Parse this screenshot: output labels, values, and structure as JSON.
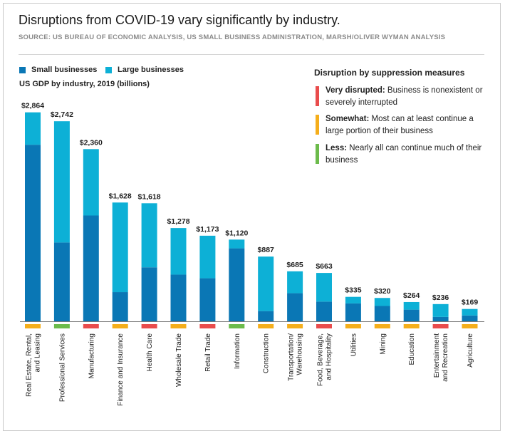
{
  "header": {
    "title": "Disruptions from COVID-19 vary significantly by industry.",
    "source": "SOURCE: US BUREAU OF ECONOMIC ANALYSIS, US SMALL BUSINESS ADMINISTRATION, MARSH/OLIVER WYMAN ANALYSIS"
  },
  "colors": {
    "small": "#0a77b5",
    "large": "#0db0d6",
    "very": "#e94c4c",
    "somewhat": "#f5ae1b",
    "less": "#6cbb4b"
  },
  "legend": {
    "small_label": "Small businesses",
    "large_label": "Large businesses"
  },
  "disruption_key": {
    "title": "Disruption by suppression measures",
    "items": [
      {
        "key": "very",
        "label": "Very disrupted:",
        "text": "Business is nonexistent or severely interrupted"
      },
      {
        "key": "somewhat",
        "label": "Somewhat:",
        "text": "Most can at least continue a large portion of their business"
      },
      {
        "key": "less",
        "label": "Less:",
        "text": "Nearly all can continue much of their business"
      }
    ]
  },
  "chart_data": {
    "type": "bar",
    "stacked": true,
    "title": "US GDP by industry, 2019 (billions)",
    "unit_prefix": "$",
    "categories": [
      "Real Estate, Rental, and Leasing",
      "Professional Services",
      "Manufacturing",
      "Finance and Insurance",
      "Health Care",
      "Wholesale Trade",
      "Retail Trade",
      "Information",
      "Construction",
      "Transportation/ Warehousing",
      "Food, Beverage, and Hospitality",
      "Utilities",
      "Mining",
      "Education",
      "Entertainment and Recreation",
      "Agriculture"
    ],
    "category_lines": [
      [
        "Real Estate, Rental,",
        "and Leasing"
      ],
      [
        "Professional Services"
      ],
      [
        "Manufacturing"
      ],
      [
        "Finance and Insurance"
      ],
      [
        "Health Care"
      ],
      [
        "Wholesale Trade"
      ],
      [
        "Retail Trade"
      ],
      [
        "Information"
      ],
      [
        "Construction"
      ],
      [
        "Transportation/",
        "Warehousing"
      ],
      [
        "Food, Beverage,",
        "and Hospitality"
      ],
      [
        "Utilities"
      ],
      [
        "Mining"
      ],
      [
        "Education"
      ],
      [
        "Entertainment",
        "and Recreation"
      ],
      [
        "Agriculture"
      ]
    ],
    "totals": [
      2864,
      2742,
      2360,
      1628,
      1618,
      1278,
      1173,
      1120,
      887,
      685,
      663,
      335,
      320,
      264,
      236,
      169
    ],
    "total_labels": [
      "$2,864",
      "$2,742",
      "$2,360",
      "$1,628",
      "$1,618",
      "$1,278",
      "$1,173",
      "$1,120",
      "$887",
      "$685",
      "$663",
      "$335",
      "$320",
      "$264",
      "$236",
      "$169"
    ],
    "series": [
      {
        "name": "Small businesses",
        "values": [
          2420,
          1080,
          1450,
          400,
          740,
          640,
          590,
          1000,
          140,
          385,
          270,
          245,
          210,
          160,
          60,
          80
        ]
      },
      {
        "name": "Large businesses",
        "values": [
          444,
          1662,
          910,
          1228,
          878,
          638,
          583,
          120,
          747,
          300,
          393,
          90,
          110,
          104,
          176,
          89
        ]
      }
    ],
    "disruption": [
      "somewhat",
      "less",
      "very",
      "somewhat",
      "very",
      "somewhat",
      "very",
      "less",
      "somewhat",
      "somewhat",
      "very",
      "somewhat",
      "somewhat",
      "somewhat",
      "very",
      "somewhat"
    ],
    "ylim": [
      0,
      2900
    ],
    "grid": false,
    "legend_position": "top-left"
  }
}
